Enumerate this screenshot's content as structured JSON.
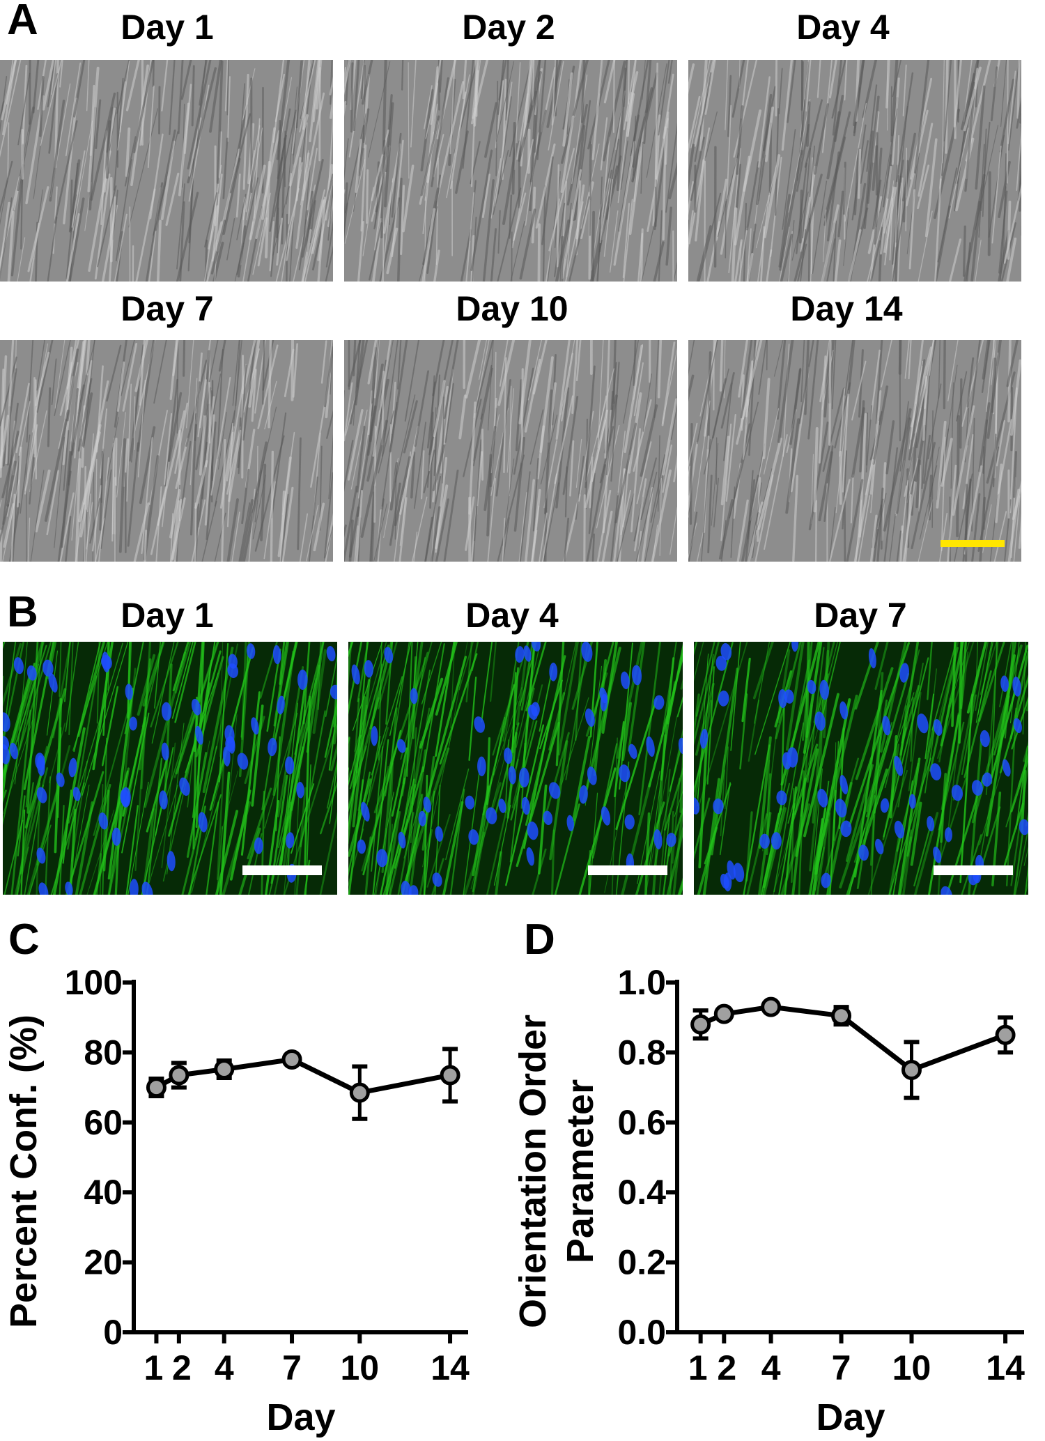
{
  "panels": {
    "A": {
      "letter": "A",
      "labels": [
        "Day 1",
        "Day 2",
        "Day 4",
        "Day 7",
        "Day 10",
        "Day 14"
      ],
      "scale_bar_color": "#ffe600"
    },
    "B": {
      "letter": "B",
      "labels": [
        "Day 1",
        "Day 4",
        "Day 7"
      ],
      "scale_bar_color": "#ffffff",
      "stain_colors": {
        "actin": "#22c21a",
        "nuclei": "#1f4dff"
      }
    },
    "C": {
      "letter": "C"
    },
    "D": {
      "letter": "D"
    }
  },
  "chart_data": [
    {
      "type": "line",
      "x": [
        1,
        2,
        4,
        7,
        10,
        14
      ],
      "series": [
        {
          "values": [
            70,
            73.5,
            75.2,
            78,
            68.5,
            73.5
          ],
          "errors": [
            2.5,
            3.5,
            2.5,
            0.5,
            7.5,
            7.5
          ]
        }
      ],
      "xlabel": "Day",
      "ylabel": "Percent Conf. (%)",
      "ylim": [
        0,
        100
      ],
      "yticks": [
        "0",
        "20",
        "40",
        "60",
        "80",
        "100"
      ],
      "xticks": [
        "1",
        "2",
        "4",
        "7",
        "10",
        "14"
      ],
      "marker_color": "#a0a0a0",
      "line_color": "#000000",
      "grid": false
    },
    {
      "type": "line",
      "x": [
        1,
        2,
        4,
        7,
        10,
        14
      ],
      "series": [
        {
          "values": [
            0.88,
            0.91,
            0.93,
            0.905,
            0.75,
            0.85
          ],
          "errors": [
            0.04,
            0.01,
            0.01,
            0.025,
            0.08,
            0.05
          ]
        }
      ],
      "xlabel": "Day",
      "ylabel": [
        "Orientation Order",
        "Parameter"
      ],
      "ylim": [
        0,
        1
      ],
      "yticks": [
        "0.0",
        "0.2",
        "0.4",
        "0.6",
        "0.8",
        "1.0"
      ],
      "xticks": [
        "1",
        "2",
        "4",
        "7",
        "10",
        "14"
      ],
      "marker_color": "#a0a0a0",
      "line_color": "#000000",
      "grid": false
    }
  ]
}
